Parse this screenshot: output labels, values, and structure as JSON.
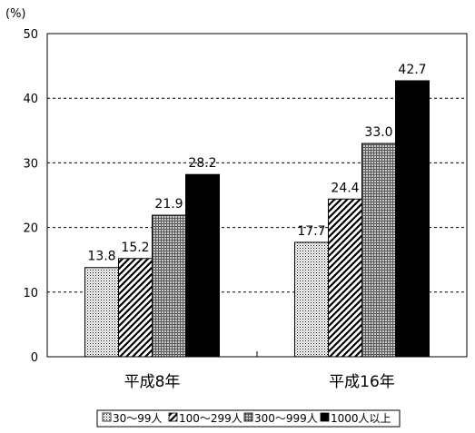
{
  "chart_data": {
    "type": "bar",
    "unit_label": "(%)",
    "categories": [
      "平成8年",
      "平成16年"
    ],
    "series": [
      {
        "name": "30～99人",
        "values": [
          13.8,
          17.7
        ],
        "fill": "dots"
      },
      {
        "name": "100～299人",
        "values": [
          15.2,
          24.4
        ],
        "fill": "diagonal-hatch"
      },
      {
        "name": "300～999人",
        "values": [
          21.9,
          33.0
        ],
        "fill": "grid"
      },
      {
        "name": "1000人以上",
        "values": [
          28.2,
          42.7
        ],
        "fill": "solid-black"
      }
    ],
    "value_labels": [
      [
        "13.8",
        "17.7"
      ],
      [
        "15.2",
        "24.4"
      ],
      [
        "21.9",
        "33.0"
      ],
      [
        "28.2",
        "42.7"
      ]
    ],
    "y_ticks": [
      "0",
      "10",
      "20",
      "30",
      "40",
      "50"
    ],
    "ylim": [
      0,
      50
    ],
    "grid": "horizontal-dashed",
    "legend_position": "bottom"
  }
}
